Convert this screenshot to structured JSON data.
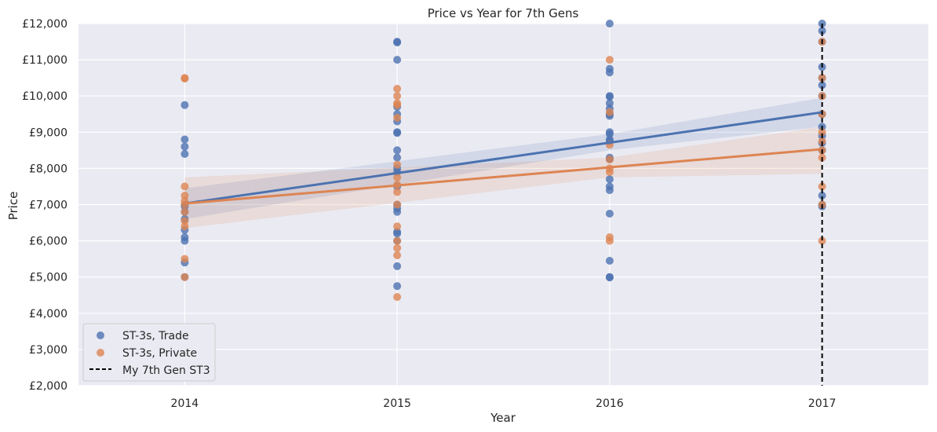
{
  "chart_data": {
    "type": "scatter",
    "title": "Price vs Year for 7th Gens",
    "xlabel": "Year",
    "ylabel": "Price",
    "xlim": [
      2013.5,
      2017.5
    ],
    "ylim": [
      2000,
      12000
    ],
    "x_ticks": [
      2014,
      2015,
      2016,
      2017
    ],
    "x_tick_labels": [
      "2014",
      "2015",
      "2016",
      "2017"
    ],
    "y_ticks": [
      2000,
      3000,
      4000,
      5000,
      6000,
      7000,
      8000,
      9000,
      10000,
      11000,
      12000
    ],
    "y_tick_labels": [
      "£2,000",
      "£3,000",
      "£4,000",
      "£5,000",
      "£6,000",
      "£7,000",
      "£8,000",
      "£9,000",
      "£10,000",
      "£11,000",
      "£12,000"
    ],
    "grid": true,
    "background": "#eaeaf2",
    "legend_position": "lower-left",
    "series": [
      {
        "name": "ST-3s, Trade",
        "color": "#4c72b0",
        "points": [
          [
            2014,
            9750
          ],
          [
            2014,
            8800
          ],
          [
            2014,
            8600
          ],
          [
            2014,
            8400
          ],
          [
            2014,
            7000
          ],
          [
            2014,
            6950
          ],
          [
            2014,
            6800
          ],
          [
            2014,
            6600
          ],
          [
            2014,
            6300
          ],
          [
            2014,
            6100
          ],
          [
            2014,
            6000
          ],
          [
            2014,
            5400
          ],
          [
            2014,
            5000
          ],
          [
            2015,
            11500
          ],
          [
            2015,
            11480
          ],
          [
            2015,
            11000
          ],
          [
            2015,
            9700
          ],
          [
            2015,
            9500
          ],
          [
            2015,
            9300
          ],
          [
            2015,
            9000
          ],
          [
            2015,
            8980
          ],
          [
            2015,
            8500
          ],
          [
            2015,
            8300
          ],
          [
            2015,
            8000
          ],
          [
            2015,
            7900
          ],
          [
            2015,
            7500
          ],
          [
            2015,
            7000
          ],
          [
            2015,
            6900
          ],
          [
            2015,
            6800
          ],
          [
            2015,
            6250
          ],
          [
            2015,
            6200
          ],
          [
            2015,
            6000
          ],
          [
            2015,
            5300
          ],
          [
            2015,
            4750
          ],
          [
            2016,
            12000
          ],
          [
            2016,
            10750
          ],
          [
            2016,
            10650
          ],
          [
            2016,
            10000
          ],
          [
            2016,
            9980
          ],
          [
            2016,
            9800
          ],
          [
            2016,
            9650
          ],
          [
            2016,
            9500
          ],
          [
            2016,
            9450
          ],
          [
            2016,
            9000
          ],
          [
            2016,
            8950
          ],
          [
            2016,
            8800
          ],
          [
            2016,
            8750
          ],
          [
            2016,
            8300
          ],
          [
            2016,
            8250
          ],
          [
            2016,
            7700
          ],
          [
            2016,
            7500
          ],
          [
            2016,
            7400
          ],
          [
            2016,
            6750
          ],
          [
            2016,
            5450
          ],
          [
            2016,
            5000
          ],
          [
            2016,
            4990
          ],
          [
            2017,
            12000
          ],
          [
            2017,
            11800
          ],
          [
            2017,
            11500
          ],
          [
            2017,
            10800
          ],
          [
            2017,
            10500
          ],
          [
            2017,
            10300
          ],
          [
            2017,
            10000
          ],
          [
            2017,
            9500
          ],
          [
            2017,
            9150
          ],
          [
            2017,
            8900
          ],
          [
            2017,
            8700
          ],
          [
            2017,
            8500
          ],
          [
            2017,
            7250
          ],
          [
            2017,
            7000
          ],
          [
            2017,
            6950
          ]
        ],
        "trend": {
          "start": [
            2014,
            7030
          ],
          "end": [
            2017,
            9550
          ]
        },
        "ci": {
          "start": [
            6600,
            7450
          ],
          "mid2016": [
            8500,
            8950
          ],
          "end": [
            9150,
            9950
          ]
        }
      },
      {
        "name": "ST-3s, Private",
        "color": "#dd8452",
        "points": [
          [
            2014,
            10500
          ],
          [
            2014,
            10480
          ],
          [
            2014,
            7500
          ],
          [
            2014,
            7250
          ],
          [
            2014,
            7100
          ],
          [
            2014,
            7000
          ],
          [
            2014,
            6800
          ],
          [
            2014,
            6550
          ],
          [
            2014,
            6400
          ],
          [
            2014,
            5500
          ],
          [
            2014,
            5000
          ],
          [
            2015,
            10200
          ],
          [
            2015,
            10000
          ],
          [
            2015,
            9800
          ],
          [
            2015,
            9750
          ],
          [
            2015,
            9400
          ],
          [
            2015,
            8100
          ],
          [
            2015,
            7750
          ],
          [
            2015,
            7550
          ],
          [
            2015,
            7350
          ],
          [
            2015,
            7000
          ],
          [
            2015,
            6400
          ],
          [
            2015,
            6000
          ],
          [
            2015,
            5800
          ],
          [
            2015,
            5600
          ],
          [
            2015,
            4450
          ],
          [
            2016,
            11000
          ],
          [
            2016,
            9550
          ],
          [
            2016,
            8650
          ],
          [
            2016,
            8250
          ],
          [
            2016,
            8000
          ],
          [
            2016,
            7900
          ],
          [
            2016,
            6100
          ],
          [
            2016,
            6000
          ],
          [
            2017,
            11500
          ],
          [
            2017,
            10500
          ],
          [
            2017,
            10000
          ],
          [
            2017,
            9500
          ],
          [
            2017,
            9000
          ],
          [
            2017,
            8750
          ],
          [
            2017,
            8500
          ],
          [
            2017,
            8300
          ],
          [
            2017,
            7500
          ],
          [
            2017,
            7000
          ],
          [
            2017,
            6000
          ]
        ],
        "trend": {
          "start": [
            2014,
            7030
          ],
          "end": [
            2017,
            8530
          ]
        },
        "ci": {
          "start": [
            6350,
            7750
          ],
          "mid2016": [
            7750,
            8300
          ],
          "end": [
            7850,
            9150
          ]
        }
      }
    ],
    "vline": {
      "name": "My 7th Gen ST3",
      "x": 2017,
      "color": "#000000",
      "style": "dashed"
    }
  }
}
